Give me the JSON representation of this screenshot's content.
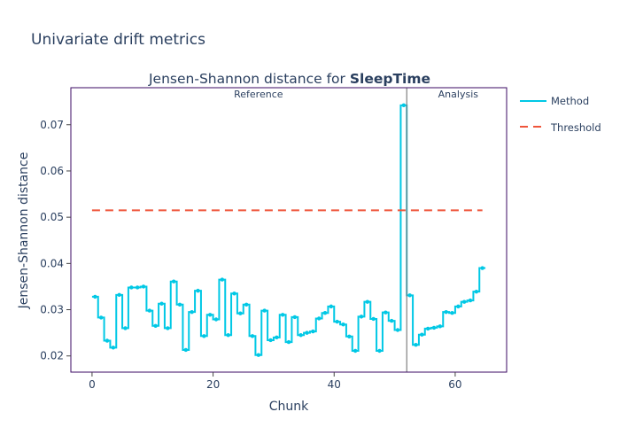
{
  "page": {
    "title": "Univariate drift metrics"
  },
  "chart_data": {
    "type": "line",
    "line_shape": "step",
    "title_prefix": "Jensen-Shannon distance for ",
    "title_bold": "SleepTime",
    "xlabel": "Chunk",
    "ylabel": "Jensen-Shannon distance",
    "xlim": [
      -3.5,
      68.5
    ],
    "ylim": [
      0.0165,
      0.078
    ],
    "xticks": [
      0,
      20,
      40,
      60
    ],
    "yticks": [
      0.02,
      0.03,
      0.04,
      0.05,
      0.06,
      0.07
    ],
    "yticks_labels": [
      "0.02",
      "0.03",
      "0.04",
      "0.05",
      "0.06",
      "0.07"
    ],
    "grid": false,
    "legend_position": "right",
    "colors": {
      "method": "#00c8e5",
      "threshold": "#ef553b",
      "divider": "#808080",
      "frame": "#3b0a63"
    },
    "period_divider_x": 52,
    "period_labels": [
      {
        "text": "Reference",
        "x": 27.5
      },
      {
        "text": "Analysis",
        "x": 60.5
      }
    ],
    "threshold": {
      "name": "Threshold",
      "value": 0.0515,
      "x": [
        0,
        64.5
      ]
    },
    "series": [
      {
        "name": "Method",
        "x_start": 0,
        "values": [
          0.0328,
          0.0283,
          0.0233,
          0.0218,
          0.0332,
          0.026,
          0.0348,
          0.0348,
          0.035,
          0.0298,
          0.0265,
          0.0313,
          0.026,
          0.0361,
          0.0311,
          0.0213,
          0.0295,
          0.0341,
          0.0243,
          0.0289,
          0.0279,
          0.0365,
          0.0245,
          0.0335,
          0.0292,
          0.0311,
          0.0243,
          0.0202,
          0.0298,
          0.0234,
          0.024,
          0.0289,
          0.023,
          0.0284,
          0.0245,
          0.025,
          0.0253,
          0.0281,
          0.0293,
          0.0307,
          0.0274,
          0.0268,
          0.0242,
          0.0211,
          0.0285,
          0.0317,
          0.028,
          0.0211,
          0.0294,
          0.0276,
          0.0256,
          0.0742,
          0.0331,
          0.0224,
          0.0246,
          0.0259,
          0.0261,
          0.0264,
          0.0295,
          0.0293,
          0.0307,
          0.0317,
          0.032,
          0.0339,
          0.039
        ]
      }
    ]
  }
}
